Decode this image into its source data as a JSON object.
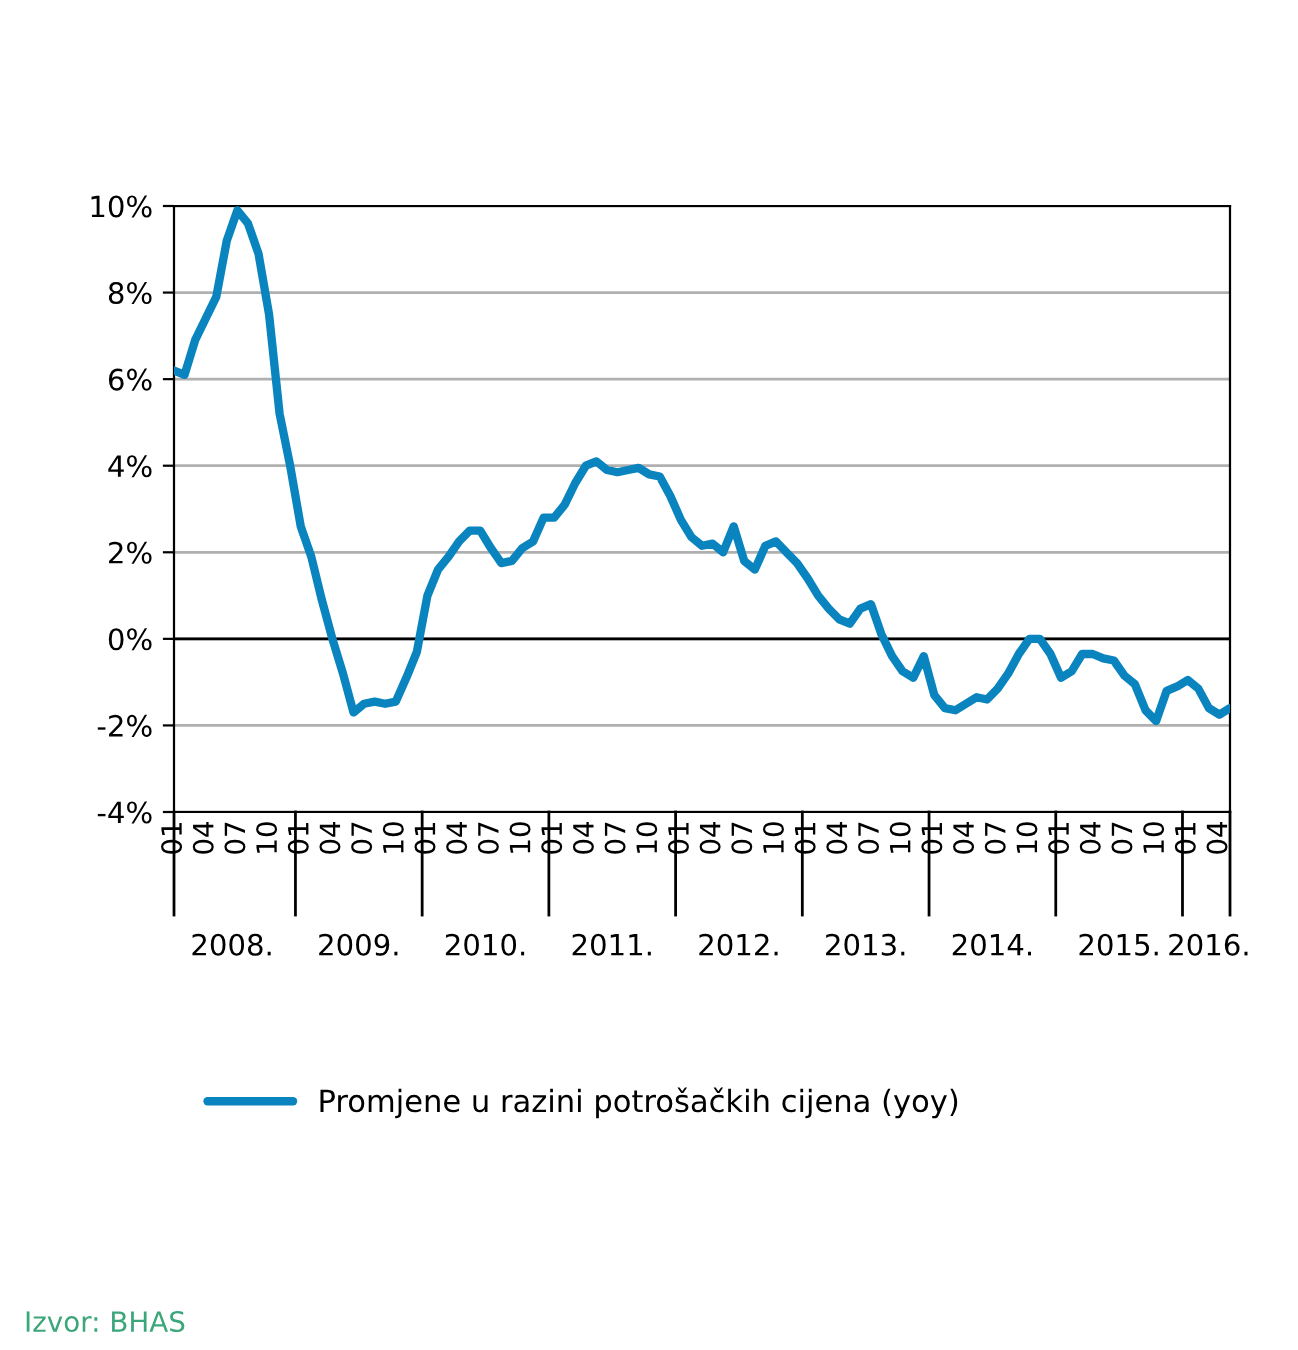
{
  "chart_data": {
    "type": "line",
    "categories": [
      "01",
      null,
      null,
      "04",
      null,
      null,
      "07",
      null,
      null,
      "10",
      null,
      null,
      "01",
      null,
      null,
      "04",
      null,
      null,
      "07",
      null,
      null,
      "10",
      null,
      null,
      "01",
      null,
      null,
      "04",
      null,
      null,
      "07",
      null,
      null,
      "10",
      null,
      null,
      "01",
      null,
      null,
      "04",
      null,
      null,
      "07",
      null,
      null,
      "10",
      null,
      null,
      "01",
      null,
      null,
      "04",
      null,
      null,
      "07",
      null,
      null,
      "10",
      null,
      null,
      "01",
      null,
      null,
      "04",
      null,
      null,
      "07",
      null,
      null,
      "10",
      null,
      null,
      "01",
      null,
      null,
      "04",
      null,
      null,
      "07",
      null,
      null,
      "10",
      null,
      null,
      "01",
      null,
      null,
      "04",
      null,
      null,
      "07",
      null,
      null,
      "10",
      null,
      null,
      "01",
      null,
      null,
      "04",
      null
    ],
    "series": [
      {
        "name": "Promjene u razini potrošačkih cijena (yoy)",
        "color": "#0a84bf",
        "values": [
          6.2,
          6.1,
          6.9,
          7.4,
          7.9,
          9.2,
          9.9,
          9.6,
          8.9,
          7.5,
          5.2,
          4.0,
          2.6,
          1.9,
          0.9,
          0.0,
          -0.8,
          -1.7,
          -1.5,
          -1.45,
          -1.5,
          -1.45,
          -0.9,
          -0.3,
          1.0,
          1.6,
          1.9,
          2.25,
          2.5,
          2.5,
          2.1,
          1.75,
          1.8,
          2.1,
          2.25,
          2.8,
          2.8,
          3.1,
          3.6,
          4.0,
          4.1,
          3.9,
          3.85,
          3.9,
          3.95,
          3.8,
          3.75,
          3.3,
          2.75,
          2.35,
          2.15,
          2.2,
          2.0,
          2.6,
          1.8,
          1.6,
          2.15,
          2.25,
          2.0,
          1.75,
          1.4,
          1.0,
          0.7,
          0.45,
          0.35,
          0.7,
          0.8,
          0.1,
          -0.4,
          -0.75,
          -0.9,
          -0.4,
          -1.3,
          -1.6,
          -1.65,
          -1.5,
          -1.35,
          -1.4,
          -1.15,
          -0.8,
          -0.35,
          0.0,
          0.0,
          -0.35,
          -0.9,
          -0.75,
          -0.35,
          -0.35,
          -0.45,
          -0.5,
          -0.85,
          -1.05,
          -1.65,
          -1.9,
          -1.2,
          -1.1,
          -0.95,
          -1.15,
          -1.6,
          -1.75,
          -1.6
        ]
      }
    ],
    "ylim": [
      -4,
      10
    ],
    "yticks": [
      {
        "value": -4,
        "label": "-4%"
      },
      {
        "value": -2,
        "label": "-2%"
      },
      {
        "value": 0,
        "label": "0%"
      },
      {
        "value": 2,
        "label": "2%"
      },
      {
        "value": 4,
        "label": "4%"
      },
      {
        "value": 6,
        "label": "6%"
      },
      {
        "value": 8,
        "label": "8%"
      },
      {
        "value": 10,
        "label": "10%"
      }
    ],
    "grid": "y",
    "ref_lines": [
      {
        "axis": "y",
        "value": 0,
        "label": null,
        "color": "#000000"
      }
    ],
    "legend": "bottom",
    "line_style": "solid",
    "marker": "none",
    "annotations": [
      "2008.",
      "2009.",
      "2010.",
      "2011.",
      "2012.",
      "2013.",
      "2014.",
      "2015.",
      "2016.",
      "Izvor: BHAS"
    ]
  }
}
